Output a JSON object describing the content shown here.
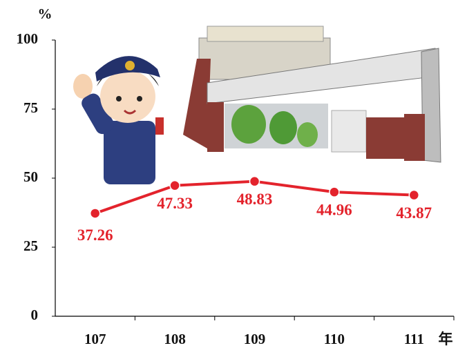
{
  "chart_data": {
    "type": "line",
    "y_label": "%",
    "x_label": "年",
    "categories": [
      "107",
      "108",
      "109",
      "110",
      "111"
    ],
    "values": [
      37.26,
      47.33,
      48.83,
      44.96,
      43.87
    ],
    "color": "#e3232c",
    "ylim": [
      0,
      100
    ],
    "yticks": [
      0,
      25,
      50,
      75,
      100
    ]
  }
}
